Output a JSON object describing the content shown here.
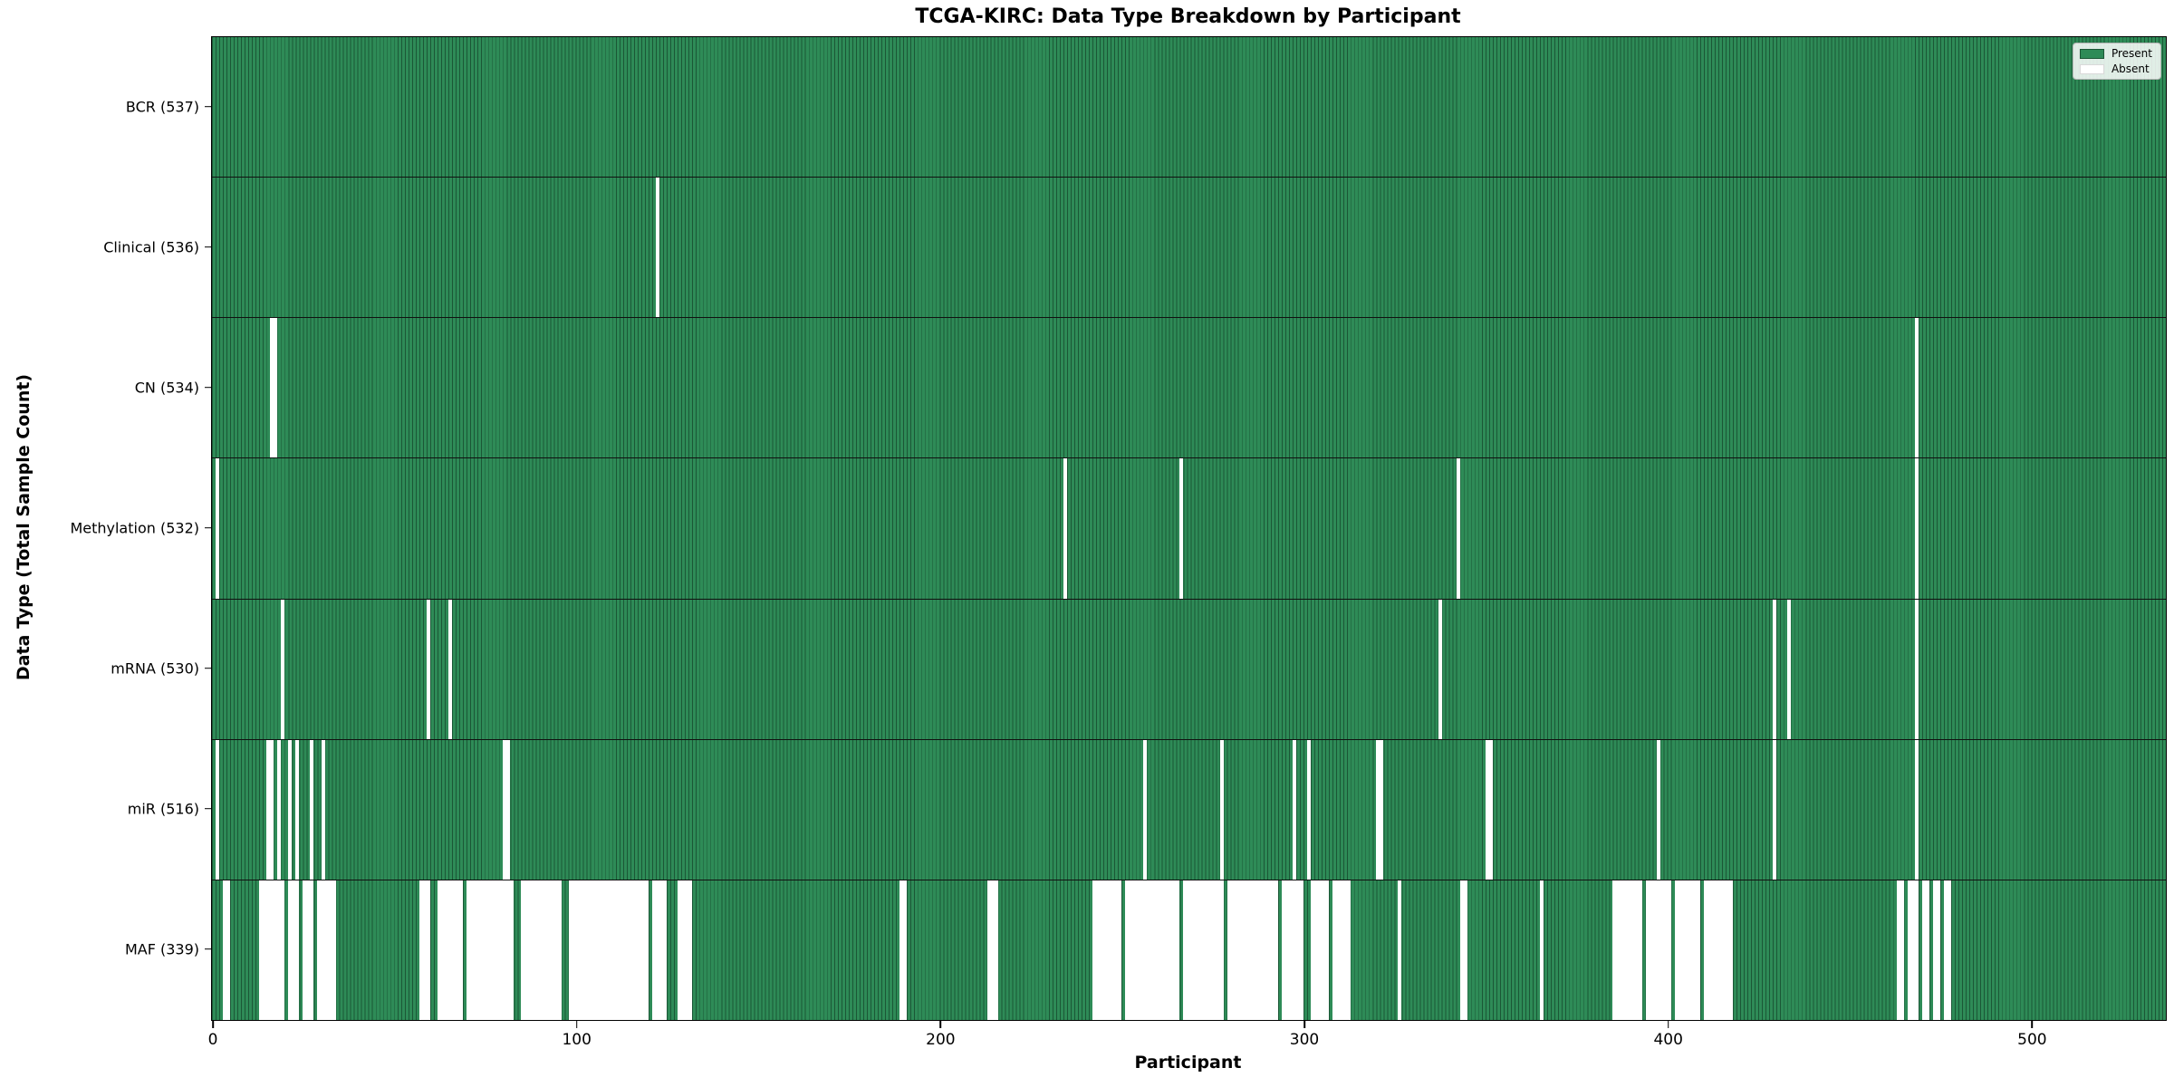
{
  "title": "TCGA-KIRC: Data Type Breakdown by Participant",
  "legend": {
    "present_label": "Present",
    "absent_label": "Absent"
  },
  "colors": {
    "present": "#2E8B57",
    "absent": "#FFFFFF"
  },
  "chart_data": {
    "type": "heatmap",
    "title": "TCGA-KIRC: Data Type Breakdown by Participant",
    "xlabel": "Participant",
    "ylabel": "Data Type (Total Sample Count)",
    "n_participants": 537,
    "x_ticks": [
      0,
      100,
      200,
      300,
      400,
      500
    ],
    "xlim": [
      -0.5,
      536.5
    ],
    "grid": false,
    "legend_position": "upper right",
    "legend_entries": [
      "Present",
      "Absent"
    ],
    "rows": [
      {
        "name": "BCR",
        "label": "BCR (537)",
        "present_count": 537,
        "absent_count": 0,
        "absent_ranges": []
      },
      {
        "name": "Clinical",
        "label": "Clinical (536)",
        "present_count": 536,
        "absent_count": 1,
        "absent_ranges": [
          [
            122,
            122
          ]
        ]
      },
      {
        "name": "CN",
        "label": "CN (534)",
        "present_count": 534,
        "absent_count": 3,
        "absent_ranges": [
          [
            16,
            17
          ],
          [
            468,
            468
          ]
        ]
      },
      {
        "name": "Methylation",
        "label": "Methylation (532)",
        "present_count": 532,
        "absent_count": 5,
        "absent_ranges": [
          [
            1,
            1
          ],
          [
            234,
            234
          ],
          [
            266,
            266
          ],
          [
            342,
            342
          ],
          [
            468,
            468
          ]
        ]
      },
      {
        "name": "mRNA",
        "label": "mRNA (530)",
        "present_count": 530,
        "absent_count": 7,
        "absent_ranges": [
          [
            19,
            19
          ],
          [
            59,
            59
          ],
          [
            65,
            65
          ],
          [
            337,
            337
          ],
          [
            429,
            429
          ],
          [
            433,
            433
          ],
          [
            468,
            468
          ]
        ]
      },
      {
        "name": "miR",
        "label": "miR (516)",
        "present_count": 516,
        "absent_count": 21,
        "absent_ranges": [
          [
            1,
            1
          ],
          [
            15,
            16
          ],
          [
            18,
            18
          ],
          [
            21,
            21
          ],
          [
            23,
            23
          ],
          [
            27,
            27
          ],
          [
            30,
            30
          ],
          [
            80,
            81
          ],
          [
            256,
            256
          ],
          [
            277,
            277
          ],
          [
            297,
            297
          ],
          [
            301,
            301
          ],
          [
            320,
            321
          ],
          [
            350,
            351
          ],
          [
            397,
            397
          ],
          [
            429,
            429
          ],
          [
            468,
            468
          ]
        ]
      },
      {
        "name": "MAF",
        "label": "MAF (339)",
        "present_count": 339,
        "absent_count": 198,
        "absent_ranges": [
          [
            3,
            4
          ],
          [
            13,
            19
          ],
          [
            21,
            23
          ],
          [
            25,
            27
          ],
          [
            29,
            33
          ],
          [
            57,
            59
          ],
          [
            62,
            68
          ],
          [
            70,
            82
          ],
          [
            85,
            95
          ],
          [
            98,
            119
          ],
          [
            121,
            124
          ],
          [
            128,
            131
          ],
          [
            189,
            190
          ],
          [
            213,
            215
          ],
          [
            242,
            249
          ],
          [
            251,
            265
          ],
          [
            267,
            277
          ],
          [
            279,
            292
          ],
          [
            294,
            299
          ],
          [
            302,
            306
          ],
          [
            308,
            312
          ],
          [
            326,
            326
          ],
          [
            343,
            344
          ],
          [
            365,
            365
          ],
          [
            385,
            392
          ],
          [
            394,
            400
          ],
          [
            402,
            408
          ],
          [
            410,
            417
          ],
          [
            463,
            464
          ],
          [
            466,
            468
          ],
          [
            470,
            471
          ],
          [
            473,
            474
          ],
          [
            476,
            477
          ]
        ]
      }
    ]
  }
}
